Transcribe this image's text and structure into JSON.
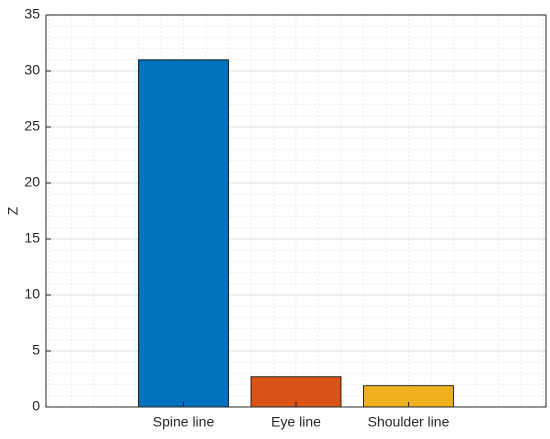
{
  "chart_data": {
    "type": "bar",
    "y_label": "Z",
    "categories": [
      "Spine line",
      "Eye line",
      "Shoulder line"
    ],
    "values": [
      31,
      2.7,
      1.9
    ],
    "colors": [
      "#0072bd",
      "#d95319",
      "#edb120"
    ],
    "ylim": [
      0,
      35
    ],
    "yticks": [
      0,
      5,
      10,
      15,
      20,
      25,
      30,
      35
    ],
    "grid": true,
    "minor_grid": true
  }
}
